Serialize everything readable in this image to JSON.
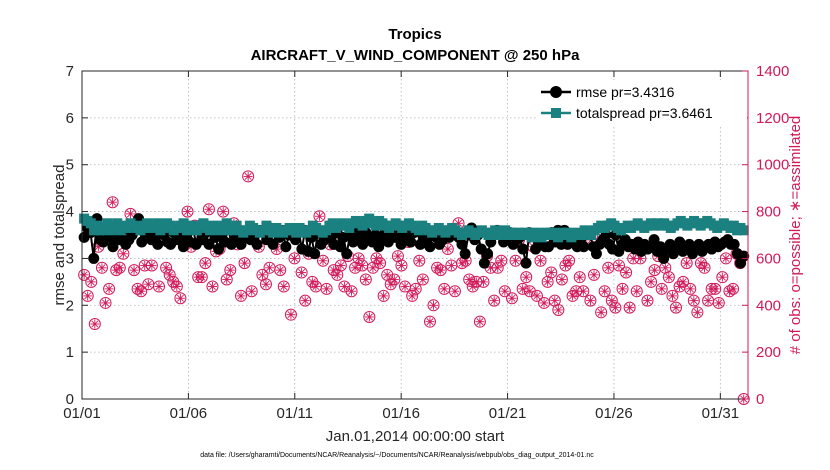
{
  "chart_data": {
    "type": "line",
    "title": "Tropics",
    "subtitle": "AIRCRAFT_V_WIND_COMPONENT @ 250 hPa",
    "xlabel": "Jan.01,2014 00:00:00 start",
    "ylabel": "rmse and totalspread",
    "y2label": "# of obs: o=possible; ∗=assimilated",
    "footer": "data file: /Users/gharamti/Documents/NCAR/Reanalysis/~/Documents/NCAR/Reanalysis/webpub/obs_diag_output_2014-01.nc",
    "xlim": [
      0,
      31.3
    ],
    "ylim": [
      0,
      7
    ],
    "y2lim": [
      0,
      1400
    ],
    "xticks": [
      0,
      5,
      10,
      15,
      20,
      25,
      30
    ],
    "xticklabels": [
      "01/01",
      "01/06",
      "01/11",
      "01/16",
      "01/21",
      "01/26",
      "01/31"
    ],
    "yticks": [
      0,
      1,
      2,
      3,
      4,
      5,
      6,
      7
    ],
    "yticklabels": [
      "0",
      "1",
      "2",
      "3",
      "4",
      "5",
      "6",
      "7"
    ],
    "y2ticks": [
      0,
      200,
      400,
      600,
      800,
      1000,
      1200,
      1400
    ],
    "y2ticklabels": [
      "0",
      "200",
      "400",
      "600",
      "800",
      "1000",
      "1200",
      "1400"
    ],
    "grid": true,
    "legend_location": "top-right",
    "colors": {
      "rmse": "#000000",
      "totalspread": "#1a8080",
      "obs": "#d1195a",
      "grid": "#b0b0b0"
    },
    "series": [
      {
        "name": "rmse pr=3.4316",
        "axis": "left",
        "marker": "circle",
        "values": [
          3.45,
          3.65,
          3.55,
          3.0,
          3.85,
          3.4,
          3.35,
          3.6,
          3.45,
          3.25,
          3.55,
          3.4,
          3.6,
          3.3,
          3.4,
          3.5,
          3.6,
          3.85,
          3.35,
          3.55,
          3.7,
          3.4,
          3.5,
          3.3,
          3.6,
          3.5,
          3.35,
          3.3,
          3.55,
          3.4,
          3.45,
          3.25,
          3.55,
          3.35,
          3.65,
          3.3,
          3.7,
          3.4,
          3.55,
          3.3,
          3.6,
          3.45,
          3.2,
          3.55,
          3.35,
          3.65,
          3.3,
          3.4,
          3.55,
          3.3,
          3.45,
          3.6,
          3.4,
          3.5,
          3.3,
          3.6,
          3.55,
          3.4,
          3.65,
          3.3,
          3.55,
          3.45,
          3.6,
          3.25,
          3.5,
          3.55,
          3.4,
          3.6,
          3.2,
          3.6,
          3.15,
          3.45,
          3.1,
          3.55,
          3.3,
          3.4,
          3.6,
          3.45,
          3.3,
          3.55,
          3.25,
          3.45,
          3.1,
          3.5,
          3.35,
          3.6,
          3.45,
          3.3,
          3.55,
          3.4,
          3.35,
          3.5,
          3.25,
          3.4,
          3.55,
          3.35,
          3.6,
          3.45,
          3.5,
          3.3,
          3.4,
          3.55,
          3.35,
          3.55,
          3.6,
          3.3,
          3.5,
          3.4,
          3.25,
          3.55,
          3.45,
          3.3,
          3.4,
          3.55,
          3.45,
          3.6,
          3.5,
          3.45,
          3.3,
          3.1,
          3.5,
          3.65,
          3.4,
          3.5,
          3.2,
          2.9,
          3.1,
          3.35,
          3.55,
          3.6,
          3.5,
          3.35,
          3.4,
          3.55,
          3.3,
          3.4,
          3.45,
          3.2,
          2.9,
          3.55,
          3.5,
          3.2,
          3.35,
          3.3,
          3.25,
          3.25,
          3.55,
          3.35,
          3.6,
          3.3,
          3.6,
          3.3,
          3.4,
          3.35,
          3.25,
          3.45,
          3.25,
          3.55,
          3.5,
          3.25,
          3.1,
          3.3,
          3.4,
          3.5,
          3.3,
          3.2,
          3.5,
          3.15,
          3.3,
          3.4,
          3.25,
          3.3,
          3.2,
          3.35,
          3.15,
          3.3,
          3.2,
          3.25,
          3.4,
          3.15,
          3.25,
          3.0,
          3.2,
          3.3,
          3.1,
          3.25,
          3.35,
          3.15,
          3.25,
          3.3,
          3.1,
          3.25,
          3.3,
          3.15,
          3.25,
          3.3,
          3.2,
          3.35,
          3.25,
          3.3,
          3.35,
          3.4,
          3.3,
          3.3,
          3.1,
          2.9,
          3.05
        ]
      },
      {
        "name": "totalspread pr=3.6461",
        "axis": "left",
        "marker": "square",
        "values": [
          3.85,
          3.8,
          3.75,
          3.6,
          3.7,
          3.6,
          3.65,
          3.75,
          3.6,
          3.7,
          3.75,
          3.6,
          3.7,
          3.65,
          3.75,
          3.7,
          3.65,
          3.6,
          3.7,
          3.75,
          3.65,
          3.7,
          3.75,
          3.6,
          3.65,
          3.75,
          3.7,
          3.6,
          3.65,
          3.7,
          3.75,
          3.6,
          3.7,
          3.65,
          3.6,
          3.7,
          3.75,
          3.65,
          3.6,
          3.7,
          3.65,
          3.6,
          3.7,
          3.75,
          3.6,
          3.65,
          3.7,
          3.6,
          3.55,
          3.6,
          3.7,
          3.65,
          3.6,
          3.55,
          3.6,
          3.7,
          3.6,
          3.55,
          3.65,
          3.6,
          3.55,
          3.6,
          3.65,
          3.6,
          3.55,
          3.65,
          3.6,
          3.55,
          3.6,
          3.7,
          3.65,
          3.6,
          3.55,
          3.6,
          3.7,
          3.75,
          3.65,
          3.7,
          3.75,
          3.7,
          3.65,
          3.75,
          3.8,
          3.75,
          3.7,
          3.8,
          3.85,
          3.75,
          3.7,
          3.8,
          3.75,
          3.7,
          3.65,
          3.7,
          3.75,
          3.7,
          3.65,
          3.7,
          3.75,
          3.7,
          3.65,
          3.6,
          3.7,
          3.65,
          3.6,
          3.55,
          3.6,
          3.65,
          3.6,
          3.55,
          3.6,
          3.65,
          3.6,
          3.55,
          3.5,
          3.55,
          3.6,
          3.55,
          3.5,
          3.55,
          3.6,
          3.55,
          3.5,
          3.55,
          3.6,
          3.5,
          3.55,
          3.6,
          3.5,
          3.55,
          3.5,
          3.55,
          3.5,
          3.55,
          3.5,
          3.45,
          3.55,
          3.5,
          3.45,
          3.55,
          3.5,
          3.55,
          3.5,
          3.45,
          3.55,
          3.5,
          3.55,
          3.45,
          3.5,
          3.55,
          3.5,
          3.6,
          3.55,
          3.5,
          3.6,
          3.65,
          3.7,
          3.65,
          3.7,
          3.75,
          3.7,
          3.65,
          3.6,
          3.65,
          3.7,
          3.65,
          3.7,
          3.75,
          3.7,
          3.65,
          3.7,
          3.75,
          3.7,
          3.75,
          3.7,
          3.75,
          3.7,
          3.65,
          3.7,
          3.75,
          3.8,
          3.75,
          3.7,
          3.75,
          3.8,
          3.75,
          3.7,
          3.75,
          3.8,
          3.75,
          3.7,
          3.65,
          3.7,
          3.75,
          3.7,
          3.65,
          3.7,
          3.6,
          3.65,
          3.6
        ]
      },
      {
        "name": "obs possible",
        "axis": "right",
        "marker": "circle-open",
        "values": [
          530,
          440,
          500,
          320,
          650,
          560,
          410,
          470,
          840,
          550,
          560,
          620,
          720,
          790,
          550,
          470,
          460,
          570,
          490,
          570,
          690,
          480,
          730,
          560,
          530,
          500,
          480,
          430,
          660,
          800,
          650,
          740,
          520,
          520,
          580,
          810,
          480,
          630,
          640,
          800,
          510,
          550,
          750,
          660,
          440,
          580,
          950,
          460,
          720,
          650,
          530,
          490,
          560,
          720,
          640,
          550,
          480,
          720,
          360,
          600,
          710,
          540,
          420,
          620,
          500,
          480,
          780,
          590,
          470,
          660,
          550,
          530,
          570,
          480,
          610,
          460,
          560,
          600,
          570,
          510,
          350,
          560,
          600,
          580,
          440,
          530,
          490,
          510,
          610,
          570,
          480,
          670,
          440,
          470,
          590,
          510,
          700,
          330,
          400,
          560,
          550,
          470,
          640,
          570,
          460,
          750,
          580,
          590,
          510,
          480,
          500,
          330,
          500,
          610,
          560,
          420,
          560,
          590,
          460,
          700,
          430,
          590,
          680,
          470,
          520,
          460,
          650,
          440,
          590,
          410,
          500,
          540,
          420,
          380,
          510,
          570,
          590,
          440,
          460,
          520,
          460,
          660,
          420,
          530,
          680,
          370,
          460,
          560,
          420,
          390,
          570,
          470,
          540,
          390,
          600,
          460,
          600,
          650,
          420,
          500,
          550,
          610,
          470,
          560,
          520,
          440,
          390,
          480,
          500,
          580,
          470,
          420,
          370,
          580,
          560,
          420,
          470,
          470,
          410,
          520,
          600,
          460,
          470,
          620,
          580,
          0
        ]
      }
    ]
  }
}
